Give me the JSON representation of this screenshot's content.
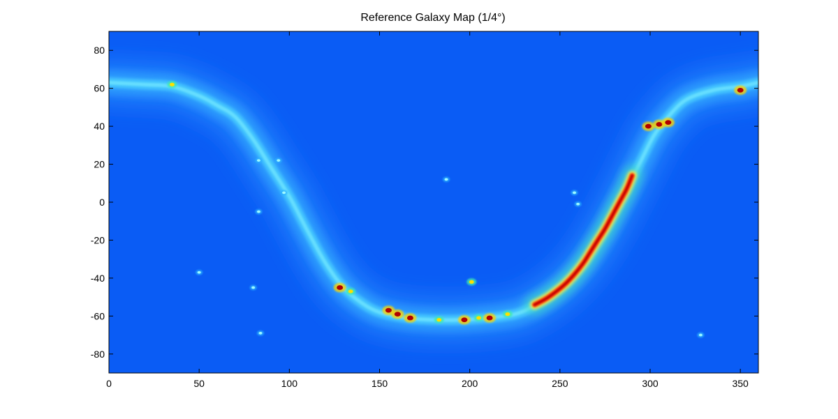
{
  "chart_data": {
    "type": "heatmap",
    "title": "Reference Galaxy Map (1/4°)",
    "xlabel": "",
    "ylabel": "",
    "xlim": [
      0,
      360
    ],
    "ylim": [
      -90,
      90
    ],
    "x_ticks": [
      0,
      50,
      100,
      150,
      200,
      250,
      300,
      350
    ],
    "x_tick_labels": [
      "0",
      "50",
      "100",
      "150",
      "200",
      "250",
      "300",
      "350"
    ],
    "y_ticks": [
      80,
      60,
      40,
      20,
      0,
      -20,
      -40,
      -60,
      -80
    ],
    "y_tick_labels": [
      "80",
      "60",
      "40",
      "20",
      "0",
      "-20",
      "-40",
      "-60",
      "-80"
    ],
    "grid": false,
    "colormap": "jet",
    "background_color": "#0a5cf5",
    "band_centerline": [
      [
        0,
        63
      ],
      [
        20,
        62
      ],
      [
        35,
        61
      ],
      [
        50,
        56
      ],
      [
        60,
        51
      ],
      [
        70,
        45
      ],
      [
        80,
        33
      ],
      [
        90,
        18
      ],
      [
        100,
        3
      ],
      [
        110,
        -15
      ],
      [
        120,
        -32
      ],
      [
        130,
        -45
      ],
      [
        140,
        -53
      ],
      [
        150,
        -58
      ],
      [
        165,
        -61
      ],
      [
        180,
        -62
      ],
      [
        195,
        -62
      ],
      [
        210,
        -61
      ],
      [
        225,
        -59
      ],
      [
        235,
        -55
      ],
      [
        245,
        -49
      ],
      [
        255,
        -41
      ],
      [
        265,
        -30
      ],
      [
        275,
        -15
      ],
      [
        285,
        3
      ],
      [
        295,
        22
      ],
      [
        302,
        35
      ],
      [
        310,
        45
      ],
      [
        320,
        54
      ],
      [
        335,
        59
      ],
      [
        350,
        61
      ],
      [
        360,
        63
      ]
    ],
    "hot_segment": [
      [
        236,
        -54
      ],
      [
        242,
        -51
      ],
      [
        248,
        -47
      ],
      [
        253,
        -43
      ],
      [
        258,
        -38
      ],
      [
        263,
        -32
      ],
      [
        267,
        -26
      ],
      [
        271,
        -20
      ],
      [
        275,
        -14
      ],
      [
        279,
        -7
      ],
      [
        283,
        0
      ],
      [
        287,
        7
      ],
      [
        290,
        14
      ]
    ],
    "hot_spots": [
      {
        "x": 35,
        "y": 62,
        "level": "yellow"
      },
      {
        "x": 83,
        "y": 22,
        "level": "cyan"
      },
      {
        "x": 94,
        "y": 22,
        "level": "cyan"
      },
      {
        "x": 97,
        "y": 5,
        "level": "cyan"
      },
      {
        "x": 83,
        "y": -5,
        "level": "cyan"
      },
      {
        "x": 50,
        "y": -37,
        "level": "cyan"
      },
      {
        "x": 80,
        "y": -45,
        "level": "cyan"
      },
      {
        "x": 84,
        "y": -69,
        "level": "cyan"
      },
      {
        "x": 128,
        "y": -45,
        "level": "red"
      },
      {
        "x": 134,
        "y": -47,
        "level": "yellow"
      },
      {
        "x": 155,
        "y": -57,
        "level": "red"
      },
      {
        "x": 160,
        "y": -59,
        "level": "red"
      },
      {
        "x": 167,
        "y": -61,
        "level": "red"
      },
      {
        "x": 183,
        "y": -62,
        "level": "yellow"
      },
      {
        "x": 197,
        "y": -62,
        "level": "red"
      },
      {
        "x": 201,
        "y": -42,
        "level": "yellow"
      },
      {
        "x": 205,
        "y": -61,
        "level": "yellow"
      },
      {
        "x": 211,
        "y": -61,
        "level": "red"
      },
      {
        "x": 221,
        "y": -59,
        "level": "yellow"
      },
      {
        "x": 187,
        "y": 12,
        "level": "cyan"
      },
      {
        "x": 258,
        "y": 5,
        "level": "cyan"
      },
      {
        "x": 260,
        "y": -1,
        "level": "cyan"
      },
      {
        "x": 299,
        "y": 40,
        "level": "red"
      },
      {
        "x": 305,
        "y": 41,
        "level": "red"
      },
      {
        "x": 310,
        "y": 42,
        "level": "red"
      },
      {
        "x": 350,
        "y": 59,
        "level": "red"
      },
      {
        "x": 328,
        "y": -70,
        "level": "cyan"
      }
    ]
  }
}
